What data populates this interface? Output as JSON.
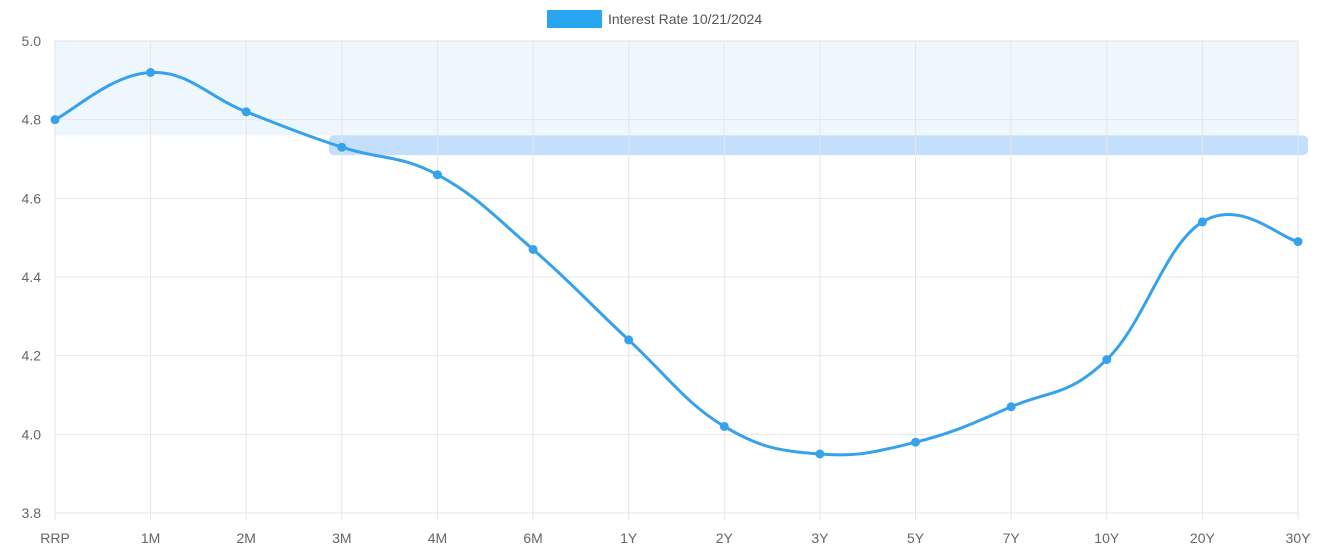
{
  "colors": {
    "line": "#36a2eb",
    "legend_box": "#29a6f2",
    "grid": "#e6e6e6",
    "top_band": "#eef6fe",
    "selection_band": "#c3dffb"
  },
  "chart_data": {
    "type": "line",
    "title": "",
    "xlabel": "",
    "ylabel": "",
    "categories": [
      "RRP",
      "1M",
      "2M",
      "3M",
      "4M",
      "6M",
      "1Y",
      "2Y",
      "3Y",
      "5Y",
      "7Y",
      "10Y",
      "20Y",
      "30Y"
    ],
    "series": [
      {
        "name": "Interest Rate 10/21/2024",
        "values": [
          4.8,
          4.92,
          4.82,
          4.73,
          4.66,
          4.47,
          4.24,
          4.02,
          3.95,
          3.98,
          4.07,
          4.19,
          4.54,
          4.49
        ]
      }
    ],
    "ylim": [
      3.8,
      5.0
    ],
    "yticks": [
      "5.0",
      "4.8",
      "4.6",
      "4.4",
      "4.2",
      "4.0",
      "3.8"
    ],
    "grid": true,
    "legend_position": "top-center",
    "highlight_bands": [
      {
        "from_category": "RRP",
        "to_category": "30Y",
        "y_from": 4.76,
        "y_to": 5.0
      },
      {
        "from_category": "3M",
        "to_category": "30Y",
        "y_from": 4.71,
        "y_to": 4.76
      }
    ]
  }
}
